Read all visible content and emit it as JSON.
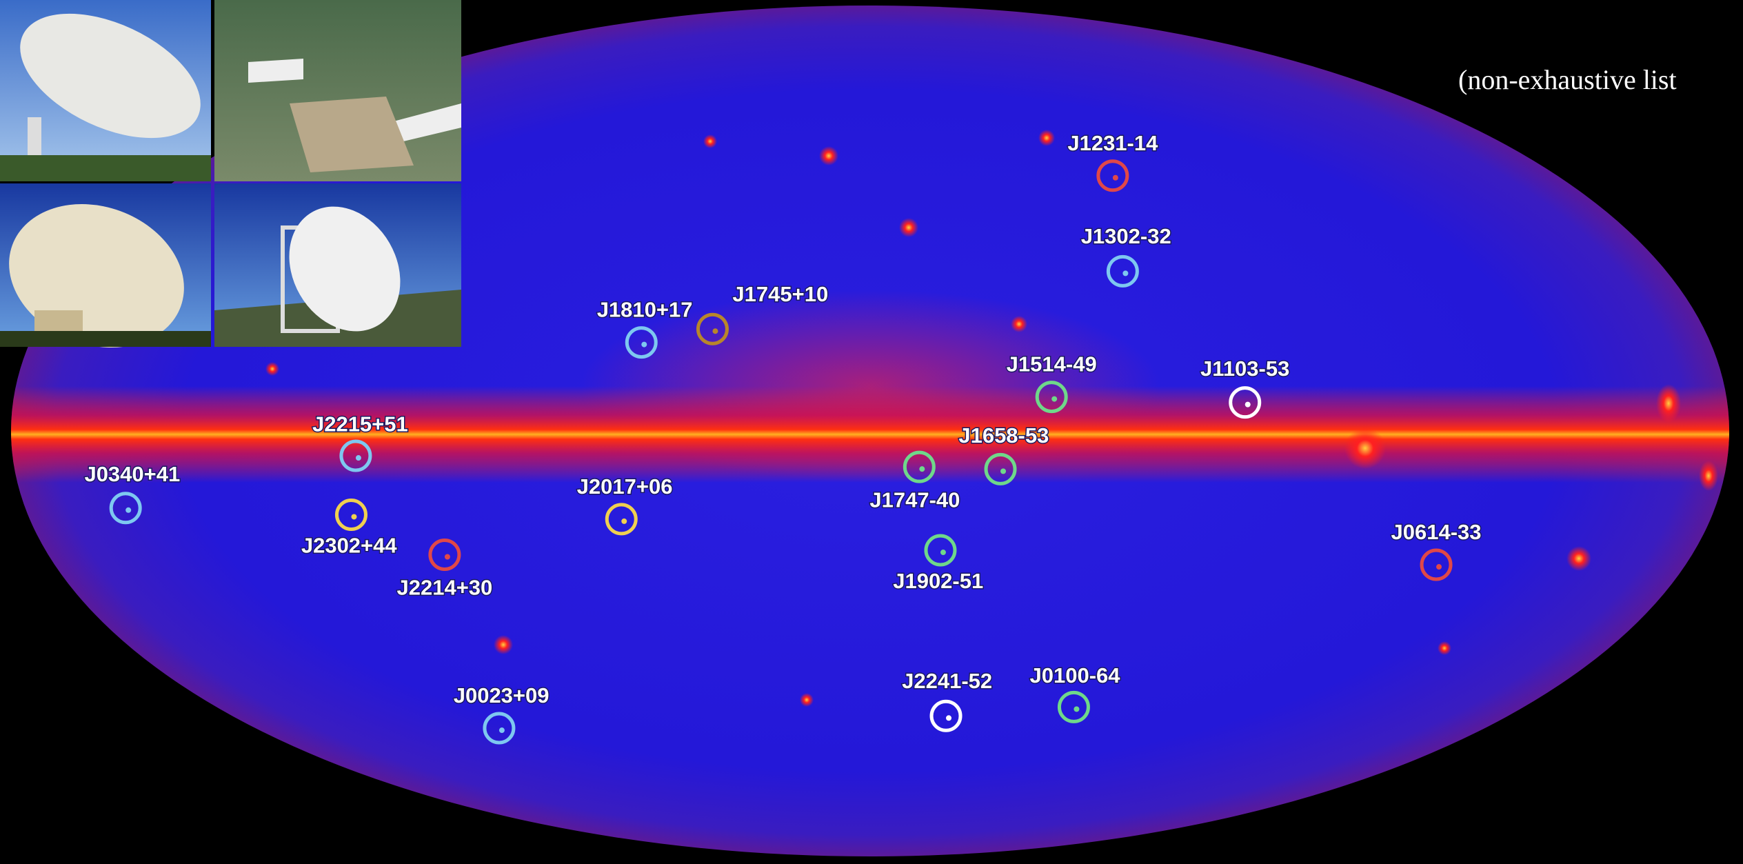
{
  "note": "(non-exhaustive list",
  "pulsars": [
    {
      "name": "J1231-14",
      "color": "#e04848"
    },
    {
      "name": "J1302-32",
      "color": "#7ec8f0"
    },
    {
      "name": "J1745+10",
      "color": "#b8862b"
    },
    {
      "name": "J1810+17",
      "color": "#7ec8f0"
    },
    {
      "name": "J1514-49",
      "color": "#6fd88a"
    },
    {
      "name": "J1103-53",
      "color": "#ffffff"
    },
    {
      "name": "J2215+51",
      "color": "#7ec8f0"
    },
    {
      "name": "J1658-53",
      "color": "#6fd88a"
    },
    {
      "name": "J1747-40",
      "color": "#6fd88a"
    },
    {
      "name": "J0340+41",
      "color": "#7ec8f0"
    },
    {
      "name": "J2017+06",
      "color": "#f0d050"
    },
    {
      "name": "J2302+44",
      "color": "#f0d050"
    },
    {
      "name": "J2214+30",
      "color": "#e04848"
    },
    {
      "name": "J1902-51",
      "color": "#6fd88a"
    },
    {
      "name": "J0614-33",
      "color": "#e04848"
    },
    {
      "name": "J0023+09",
      "color": "#7ec8f0"
    },
    {
      "name": "J2241-52",
      "color": "#ffffff"
    },
    {
      "name": "J0100-64",
      "color": "#6fd88a"
    }
  ]
}
